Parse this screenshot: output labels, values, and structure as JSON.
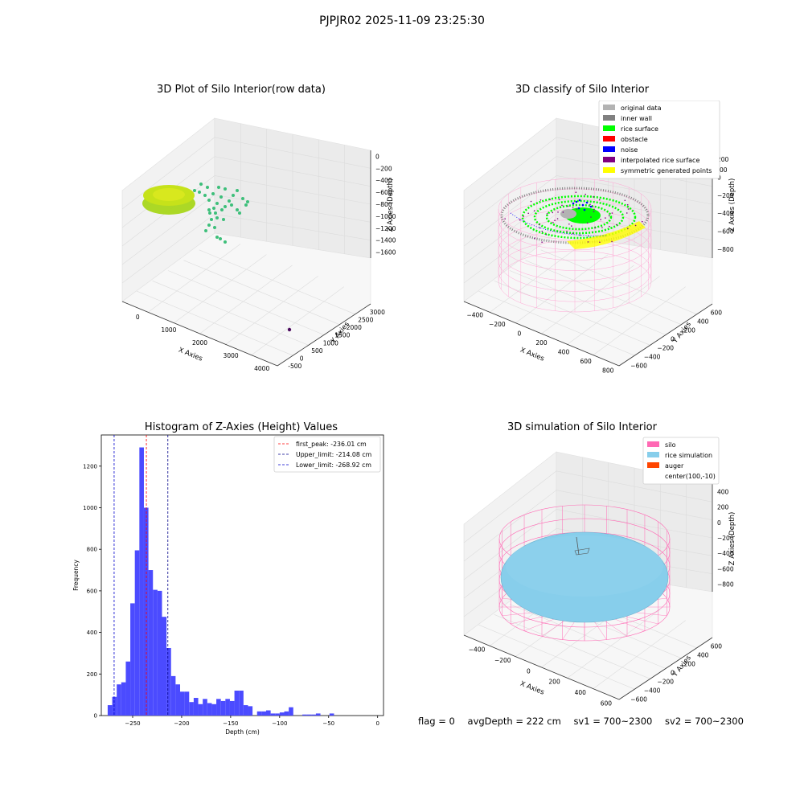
{
  "suptitle": "PJPJR02 2025-11-09 23:25:30",
  "colors": {
    "original_data": "#b3b3b3",
    "inner_wall": "#808080",
    "rice_surface": "#00ff00",
    "obstacle": "#ff0000",
    "noise": "#0000ff",
    "interpolated_rice_surface": "#800080",
    "symmetric_generated_points": "#ffff00",
    "silo": "#ff69b4",
    "rice_simulation": "#87ceeb",
    "auger": "#ff4500",
    "hist_bar": "#4b4bff"
  },
  "chart_data": [
    {
      "type": "scatter",
      "title": "3D Plot of Silo Interior(row data)",
      "xlabel": "X Axies",
      "ylabel": "Y Axies",
      "zlabel": "Z Axies (Depth)",
      "x_ticks": [
        "0",
        "1000",
        "2000",
        "3000",
        "4000"
      ],
      "y_ticks": [
        "-500",
        "0",
        "500",
        "1000",
        "1500",
        "2000",
        "2500",
        "3000"
      ],
      "z_ticks": [
        "0",
        "−200",
        "−400",
        "−600",
        "−800",
        "−1000",
        "−1200",
        "−1400",
        "−1600"
      ]
    },
    {
      "type": "scatter",
      "title": "3D classify of Silo Interior",
      "xlabel": "X Axies",
      "ylabel": "Y Axies",
      "zlabel": "Z Axies (Depth)",
      "x_ticks": [
        "−400",
        "−200",
        "0",
        "200",
        "400",
        "600",
        "800"
      ],
      "y_ticks": [
        "−600",
        "−400",
        "−200",
        "0",
        "200",
        "400",
        "600"
      ],
      "z_ticks": [
        "200",
        "0",
        "−200",
        "−400",
        "−600",
        "−800"
      ],
      "z_tick_partial": "00",
      "legend": [
        "original data",
        "inner wall",
        "rice surface",
        "obstacle",
        "noise",
        "interpolated rice surface",
        "symmetric generated points"
      ],
      "legend_position": "top-right"
    },
    {
      "type": "bar",
      "title": "Histogram of Z-Axies (Height) Values",
      "xlabel": "Depth (cm)",
      "ylabel": "Frequency",
      "xlim": [
        -282,
        6
      ],
      "ylim": [
        0,
        1350
      ],
      "x_ticks": [
        -250,
        -200,
        -150,
        -100,
        -50,
        0
      ],
      "y_ticks": [
        0,
        200,
        400,
        600,
        800,
        1000,
        1200
      ],
      "bin_start": -275.5,
      "bin_width": 4.62,
      "values": [
        50,
        90,
        150,
        160,
        260,
        540,
        795,
        1290,
        1000,
        700,
        605,
        600,
        475,
        325,
        190,
        150,
        115,
        115,
        65,
        85,
        55,
        80,
        60,
        55,
        80,
        70,
        80,
        70,
        120,
        120,
        50,
        45,
        0,
        20,
        20,
        25,
        10,
        10,
        15,
        20,
        40,
        0,
        0,
        5,
        5,
        5,
        10,
        0,
        0,
        10
      ],
      "lines": [
        {
          "label": "first_peak: -236.01 cm",
          "x": -236.01,
          "color": "#ff0000"
        },
        {
          "label": "Upper_limit: -214.08 cm",
          "x": -214.08,
          "color": "#00008b"
        },
        {
          "label": "Lower_limit: -268.92 cm",
          "x": -268.92,
          "color": "#0000cd"
        }
      ],
      "legend_position": "top-right"
    },
    {
      "type": "scatter",
      "title": "3D simulation of Silo Interior",
      "xlabel": "X Axies",
      "ylabel": "Y Axies",
      "zlabel": "Z Axies (Depth)",
      "x_ticks": [
        "−400",
        "−200",
        "0",
        "200",
        "400",
        "600"
      ],
      "y_ticks": [
        "−600",
        "−400",
        "−200",
        "0",
        "200",
        "400",
        "600"
      ],
      "z_ticks": [
        "400",
        "200",
        "0",
        "−200",
        "−400",
        "−600",
        "−800"
      ],
      "legend": [
        "silo",
        "rice simulation",
        "auger",
        "center(100,-10)"
      ],
      "legend_position": "top-right"
    }
  ],
  "footer": {
    "flag": "flag = 0",
    "avg": "avgDepth = 222 cm",
    "sv1": "sv1 = 700~2300",
    "sv2": "sv2 = 700~2300"
  }
}
